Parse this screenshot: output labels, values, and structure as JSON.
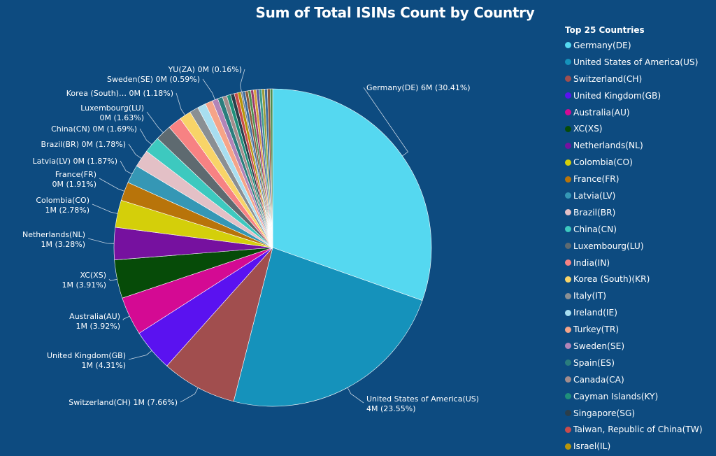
{
  "chart_data": {
    "type": "pie",
    "title": "Sum of Total ISINs Count by Country",
    "legend_title": "Top 25 Countries",
    "legend_position": "right",
    "legend": [
      {
        "name": "Germany(DE)",
        "color": "#55d8f0"
      },
      {
        "name": "United States of America(US)",
        "color": "#1592bb"
      },
      {
        "name": "Switzerland(CH)",
        "color": "#a14e4e"
      },
      {
        "name": "United Kingdom(GB)",
        "color": "#5a12f0"
      },
      {
        "name": "Australia(AU)",
        "color": "#d40a93"
      },
      {
        "name": "XC(XS)",
        "color": "#064b08"
      },
      {
        "name": "Netherlands(NL)",
        "color": "#76119f"
      },
      {
        "name": "Colombia(CO)",
        "color": "#d4cf0a"
      },
      {
        "name": "France(FR)",
        "color": "#b8740a"
      },
      {
        "name": "Latvia(LV)",
        "color": "#3597b5"
      },
      {
        "name": "Brazil(BR)",
        "color": "#e3c0c6"
      },
      {
        "name": "China(CN)",
        "color": "#3dc9bf"
      },
      {
        "name": "Luxembourg(LU)",
        "color": "#5e6a70"
      },
      {
        "name": "India(IN)",
        "color": "#f78283"
      },
      {
        "name": "Korea (South)(KR)",
        "color": "#f8d468"
      },
      {
        "name": "Italy(IT)",
        "color": "#8a8f93"
      },
      {
        "name": "Ireland(IE)",
        "color": "#a8def0"
      },
      {
        "name": "Turkey(TR)",
        "color": "#f5a488"
      },
      {
        "name": "Sweden(SE)",
        "color": "#b284b8"
      },
      {
        "name": "Spain(ES)",
        "color": "#2a7d7d"
      },
      {
        "name": "Canada(CA)",
        "color": "#a38c8c"
      },
      {
        "name": "Cayman Islands(KY)",
        "color": "#1f8f7a"
      },
      {
        "name": "Singapore(SG)",
        "color": "#2b3e4a"
      },
      {
        "name": "Taiwan, Republic of China(TW)",
        "color": "#c94b4b"
      },
      {
        "name": "Israel(IL)",
        "color": "#b8950a"
      }
    ],
    "slices": [
      {
        "name": "Germany(DE)",
        "percent": 30.41,
        "color": "#55d8f0",
        "label": [
          "Germany(DE) 6M (30.41%)"
        ]
      },
      {
        "name": "United States of America(US)",
        "percent": 23.55,
        "color": "#1592bb",
        "label": [
          "United States of America(US)",
          "4M (23.55%)"
        ]
      },
      {
        "name": "Switzerland(CH)",
        "percent": 7.66,
        "color": "#a14e4e",
        "label": [
          "Switzerland(CH) 1M (7.66%)"
        ]
      },
      {
        "name": "United Kingdom(GB)",
        "percent": 4.31,
        "color": "#5a12f0",
        "label": [
          "United Kingdom(GB)",
          "1M (4.31%)"
        ]
      },
      {
        "name": "Australia(AU)",
        "percent": 3.92,
        "color": "#d40a93",
        "label": [
          "Australia(AU)",
          "1M (3.92%)"
        ]
      },
      {
        "name": "XC(XS)",
        "percent": 3.91,
        "color": "#064b08",
        "label": [
          "XC(XS)",
          "1M (3.91%)"
        ]
      },
      {
        "name": "Netherlands(NL)",
        "percent": 3.28,
        "color": "#76119f",
        "label": [
          "Netherlands(NL)",
          "1M (3.28%)"
        ]
      },
      {
        "name": "Colombia(CO)",
        "percent": 2.78,
        "color": "#d4cf0a",
        "label": [
          "Colombia(CO)",
          "1M (2.78%)"
        ]
      },
      {
        "name": "France(FR)",
        "percent": 1.91,
        "color": "#b8740a",
        "label": [
          "France(FR)",
          "0M (1.91%)"
        ]
      },
      {
        "name": "Latvia(LV)",
        "percent": 1.87,
        "color": "#3597b5",
        "label": [
          "Latvia(LV) 0M (1.87%)"
        ]
      },
      {
        "name": "Brazil(BR)",
        "percent": 1.78,
        "color": "#e3c0c6",
        "label": [
          "Brazil(BR) 0M (1.78%)"
        ]
      },
      {
        "name": "China(CN)",
        "percent": 1.69,
        "color": "#3dc9bf",
        "label": [
          "China(CN) 0M (1.69%)"
        ]
      },
      {
        "name": "Luxembourg(LU)",
        "percent": 1.63,
        "color": "#5e6a70",
        "label": [
          "Luxembourg(LU)",
          "0M (1.63%)"
        ]
      },
      {
        "name": "India(IN)",
        "percent": 1.4,
        "color": "#f78283",
        "label": []
      },
      {
        "name": "Korea (South)(KR)",
        "percent": 1.18,
        "color": "#f8d468",
        "label": [
          "Korea (South)… 0M (1.18%)"
        ]
      },
      {
        "name": "Italy(IT)",
        "percent": 0.9,
        "color": "#8a8f93",
        "label": []
      },
      {
        "name": "Ireland(IE)",
        "percent": 0.85,
        "color": "#a8def0",
        "label": []
      },
      {
        "name": "Turkey(TR)",
        "percent": 0.75,
        "color": "#f5a488",
        "label": []
      },
      {
        "name": "Sweden(SE)",
        "percent": 0.59,
        "color": "#b284b8",
        "label": [
          "Sweden(SE) 0M (0.59%)"
        ]
      },
      {
        "name": "Spain(ES)",
        "percent": 0.5,
        "color": "#2a7d7d",
        "label": []
      },
      {
        "name": "Canada(CA)",
        "percent": 0.45,
        "color": "#a38c8c",
        "label": []
      },
      {
        "name": "Cayman Islands(KY)",
        "percent": 0.4,
        "color": "#1f8f7a",
        "label": []
      },
      {
        "name": "Singapore(SG)",
        "percent": 0.38,
        "color": "#2b3e4a",
        "label": []
      },
      {
        "name": "Taiwan, Republic of China(TW)",
        "percent": 0.35,
        "color": "#c94b4b",
        "label": []
      },
      {
        "name": "Israel(IL)",
        "percent": 0.33,
        "color": "#b8950a",
        "label": []
      },
      {
        "name": "YU(ZA)",
        "percent": 0.16,
        "color": "#6b7a8a",
        "label": [
          "YU(ZA) 0M (0.16%)"
        ]
      }
    ],
    "tail_colors": [
      "#3a6b9c",
      "#8c5a3c",
      "#4f8f4f",
      "#9c3a6b",
      "#d9a03c",
      "#5a5a9c",
      "#3c9c8c",
      "#9c9c3c"
    ]
  }
}
